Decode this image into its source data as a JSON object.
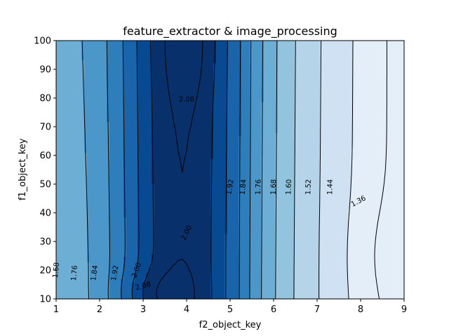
{
  "chart_data": {
    "type": "contour",
    "title": "feature_extractor & image_processing",
    "xlabel": "f2_object_key",
    "ylabel": "f1_object_key",
    "xlim": [
      1,
      9
    ],
    "ylim": [
      10,
      100
    ],
    "xticks": [
      1,
      2,
      3,
      4,
      5,
      6,
      7,
      8,
      9
    ],
    "yticks": [
      10,
      20,
      30,
      40,
      50,
      60,
      70,
      80,
      90,
      100
    ],
    "colormap": "Blues",
    "levels": [
      1.28,
      1.36,
      1.44,
      1.52,
      1.6,
      1.68,
      1.76,
      1.84,
      1.92,
      2.0,
      2.08,
      2.16
    ],
    "level_colors": [
      "#e3eef9",
      "#cfe1f2",
      "#b5d4e9",
      "#93c4de",
      "#6daed5",
      "#4b97c9",
      "#2f7ebc",
      "#1964aa",
      "#084a92",
      "#08306b",
      "#08306b"
    ],
    "contour_labels": [
      {
        "text": "2.08",
        "x": 4.0,
        "y": 79.5,
        "angle": 0
      },
      {
        "text": "1.92",
        "x": 5.0,
        "y": 49,
        "angle": -80
      },
      {
        "text": "1.84",
        "x": 5.3,
        "y": 49,
        "angle": -85
      },
      {
        "text": "1.76",
        "x": 5.65,
        "y": 49,
        "angle": -88
      },
      {
        "text": "1.68",
        "x": 6.0,
        "y": 49,
        "angle": -88
      },
      {
        "text": "1.60",
        "x": 6.35,
        "y": 49,
        "angle": -88
      },
      {
        "text": "1.52",
        "x": 6.8,
        "y": 49,
        "angle": -88
      },
      {
        "text": "1.44",
        "x": 7.3,
        "y": 49,
        "angle": -88
      },
      {
        "text": "1.36",
        "x": 7.95,
        "y": 44,
        "angle": -28
      },
      {
        "text": "2.00",
        "x": 4.0,
        "y": 33,
        "angle": -65
      },
      {
        "text": "1.68",
        "x": 1.0,
        "y": 20,
        "angle": -85
      },
      {
        "text": "1.76",
        "x": 1.42,
        "y": 19,
        "angle": -85
      },
      {
        "text": "1.84",
        "x": 1.88,
        "y": 19,
        "angle": -82
      },
      {
        "text": "1.92",
        "x": 2.35,
        "y": 19,
        "angle": -80
      },
      {
        "text": "2.00",
        "x": 2.85,
        "y": 20,
        "angle": -70
      },
      {
        "text": "2.08",
        "x": 3.0,
        "y": 14.5,
        "angle": -15
      }
    ]
  }
}
